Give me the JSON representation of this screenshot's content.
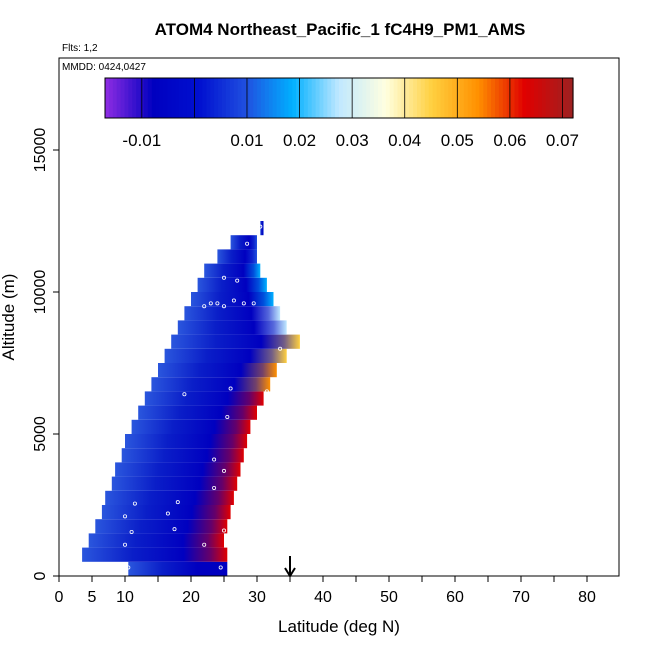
{
  "chart_data": {
    "type": "heatmap",
    "title": "ATOM4 Northeast_Pacific_1 fC4H9_PM1_AMS",
    "subtitle_flights": "Flts: 1,2",
    "subtitle_dates": "MMDD: 0424,0427",
    "xlabel": "Latitude (deg N)",
    "ylabel": "Altitude (m)",
    "xlim": [
      0,
      85
    ],
    "ylim": [
      0,
      17500
    ],
    "x_ticks": [
      0,
      5,
      10,
      20,
      30,
      40,
      50,
      60,
      70,
      80
    ],
    "x_minor_ticks": [
      15,
      25,
      35,
      45,
      55,
      65,
      75,
      85
    ],
    "y_ticks": [
      0,
      5000,
      10000,
      15000
    ],
    "colorbar": {
      "range": [
        -0.017,
        0.072
      ],
      "tick_values": [
        -0.01,
        0.01,
        0.02,
        0.03,
        0.04,
        0.05,
        0.06,
        0.07
      ],
      "tick_labels": [
        "-0.01",
        "0.01",
        "0.02",
        "0.03",
        "0.04",
        "0.05",
        "0.06",
        "0.07"
      ],
      "colors": [
        "#8a2be2",
        "#0000c0",
        "#0010d0",
        "#2050e0",
        "#00b0ff",
        "#c0e8ff",
        "#ffffe0",
        "#ffd040",
        "#ff9000",
        "#e00000",
        "#a02020"
      ]
    },
    "marker_latitude": 35,
    "profiles": [
      {
        "alt_min": 0,
        "alt_max": 500,
        "lat_start": 10.5,
        "lat_end": 25.5,
        "edge_color": "#0000c0"
      },
      {
        "alt_min": 500,
        "alt_max": 1000,
        "lat_start": 3.5,
        "lat_end": 25.5,
        "edge_color": "#e00000"
      },
      {
        "alt_min": 1000,
        "alt_max": 1500,
        "lat_start": 4.5,
        "lat_end": 25.0,
        "edge_color": "#e00000"
      },
      {
        "alt_min": 1500,
        "alt_max": 2000,
        "lat_start": 5.5,
        "lat_end": 25.5,
        "edge_color": "#e00000"
      },
      {
        "alt_min": 2000,
        "alt_max": 2500,
        "lat_start": 6.5,
        "lat_end": 26.0,
        "edge_color": "#e00000"
      },
      {
        "alt_min": 2500,
        "alt_max": 3000,
        "lat_start": 7.0,
        "lat_end": 26.5,
        "edge_color": "#e00000"
      },
      {
        "alt_min": 3000,
        "alt_max": 3500,
        "lat_start": 8.0,
        "lat_end": 27.0,
        "edge_color": "#e00000"
      },
      {
        "alt_min": 3500,
        "alt_max": 4000,
        "lat_start": 8.5,
        "lat_end": 27.5,
        "edge_color": "#e00000"
      },
      {
        "alt_min": 4000,
        "alt_max": 4500,
        "lat_start": 9.5,
        "lat_end": 28.0,
        "edge_color": "#e00000"
      },
      {
        "alt_min": 4500,
        "alt_max": 5000,
        "lat_start": 10.0,
        "lat_end": 28.5,
        "edge_color": "#e00000"
      },
      {
        "alt_min": 5000,
        "alt_max": 5500,
        "lat_start": 11.0,
        "lat_end": 29.0,
        "edge_color": "#e00000"
      },
      {
        "alt_min": 5500,
        "alt_max": 6000,
        "lat_start": 12.0,
        "lat_end": 30.0,
        "edge_color": "#e00000"
      },
      {
        "alt_min": 6000,
        "alt_max": 6500,
        "lat_start": 13.0,
        "lat_end": 31.0,
        "edge_color": "#e00000"
      },
      {
        "alt_min": 6500,
        "alt_max": 7000,
        "lat_start": 14.0,
        "lat_end": 32.0,
        "edge_color": "#ff9000"
      },
      {
        "alt_min": 7000,
        "alt_max": 7500,
        "lat_start": 15.0,
        "lat_end": 33.0,
        "edge_color": "#ff9000"
      },
      {
        "alt_min": 7500,
        "alt_max": 8000,
        "lat_start": 16.0,
        "lat_end": 34.5,
        "edge_color": "#ffd040"
      },
      {
        "alt_min": 8000,
        "alt_max": 8500,
        "lat_start": 17.0,
        "lat_end": 36.5,
        "edge_color": "#ffd040"
      },
      {
        "alt_min": 8500,
        "alt_max": 9000,
        "lat_start": 18.0,
        "lat_end": 34.5,
        "edge_color": "#c0e8ff"
      },
      {
        "alt_min": 9000,
        "alt_max": 9500,
        "lat_start": 19.0,
        "lat_end": 33.5,
        "edge_color": "#c0e8ff"
      },
      {
        "alt_min": 9500,
        "alt_max": 10000,
        "lat_start": 20.0,
        "lat_end": 32.5,
        "edge_color": "#00b0ff"
      },
      {
        "alt_min": 10000,
        "alt_max": 10500,
        "lat_start": 21.0,
        "lat_end": 31.5,
        "edge_color": "#00b0ff"
      },
      {
        "alt_min": 10500,
        "alt_max": 11000,
        "lat_start": 22.0,
        "lat_end": 30.5,
        "edge_color": "#00b0ff"
      },
      {
        "alt_min": 11000,
        "alt_max": 11500,
        "lat_start": 24.0,
        "lat_end": 30.0,
        "edge_color": "#2050e0"
      },
      {
        "alt_min": 11500,
        "alt_max": 12000,
        "lat_start": 26.0,
        "lat_end": 30.0,
        "edge_color": "#2050e0"
      },
      {
        "alt_min": 12000,
        "alt_max": 12500,
        "lat_start": 30.5,
        "lat_end": 31.0,
        "edge_color": "#2050e0"
      }
    ],
    "points": [
      {
        "lat": 10.5,
        "alt": 300
      },
      {
        "lat": 24.5,
        "alt": 300
      },
      {
        "lat": 10.0,
        "alt": 1100
      },
      {
        "lat": 22.0,
        "alt": 1100
      },
      {
        "lat": 11.0,
        "alt": 1550
      },
      {
        "lat": 17.5,
        "alt": 1650
      },
      {
        "lat": 25.0,
        "alt": 1600
      },
      {
        "lat": 10.0,
        "alt": 2100
      },
      {
        "lat": 16.5,
        "alt": 2200
      },
      {
        "lat": 11.5,
        "alt": 2550
      },
      {
        "lat": 18.0,
        "alt": 2600
      },
      {
        "lat": 23.5,
        "alt": 3100
      },
      {
        "lat": 25.0,
        "alt": 3700
      },
      {
        "lat": 23.5,
        "alt": 4100
      },
      {
        "lat": 25.5,
        "alt": 5600
      },
      {
        "lat": 19.0,
        "alt": 6400
      },
      {
        "lat": 26.0,
        "alt": 6600
      },
      {
        "lat": 31.5,
        "alt": 6500
      },
      {
        "lat": 32.5,
        "alt": 6300
      },
      {
        "lat": 33.0,
        "alt": 6700
      },
      {
        "lat": 33.5,
        "alt": 8000
      },
      {
        "lat": 22.0,
        "alt": 9500
      },
      {
        "lat": 23.0,
        "alt": 9600
      },
      {
        "lat": 24.0,
        "alt": 9600
      },
      {
        "lat": 25.0,
        "alt": 9500
      },
      {
        "lat": 26.5,
        "alt": 9700
      },
      {
        "lat": 28.0,
        "alt": 9600
      },
      {
        "lat": 29.5,
        "alt": 9600
      },
      {
        "lat": 25.0,
        "alt": 10500
      },
      {
        "lat": 27.0,
        "alt": 10400
      },
      {
        "lat": 28.5,
        "alt": 11700
      },
      {
        "lat": 30.5,
        "alt": 12300
      }
    ]
  }
}
